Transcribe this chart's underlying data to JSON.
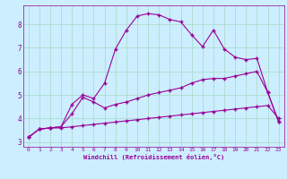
{
  "title": "",
  "xlabel": "Windchill (Refroidissement éolien,°C)",
  "bg_color": "#cceeff",
  "grid_color": "#aaddcc",
  "line_color": "#990099",
  "xlim": [
    -0.5,
    23.5
  ],
  "ylim": [
    2.8,
    8.8
  ],
  "yticks": [
    3,
    4,
    5,
    6,
    7,
    8
  ],
  "xticks": [
    0,
    1,
    2,
    3,
    4,
    5,
    6,
    7,
    8,
    9,
    10,
    11,
    12,
    13,
    14,
    15,
    16,
    17,
    18,
    19,
    20,
    21,
    22,
    23
  ],
  "series1_x": [
    0,
    1,
    2,
    3,
    4,
    5,
    6,
    7,
    8,
    9,
    10,
    11,
    12,
    13,
    14,
    15,
    16,
    17,
    18,
    19,
    20,
    21,
    22,
    23
  ],
  "series1_y": [
    3.2,
    3.55,
    3.6,
    3.6,
    3.65,
    3.7,
    3.75,
    3.8,
    3.85,
    3.9,
    3.95,
    4.0,
    4.05,
    4.1,
    4.15,
    4.2,
    4.25,
    4.3,
    4.35,
    4.4,
    4.45,
    4.5,
    4.55,
    4.0
  ],
  "series2_x": [
    0,
    1,
    2,
    3,
    4,
    5,
    6,
    7,
    8,
    9,
    10,
    11,
    12,
    13,
    14,
    15,
    16,
    17,
    18,
    19,
    20,
    21,
    22,
    23
  ],
  "series2_y": [
    3.2,
    3.55,
    3.6,
    3.65,
    4.2,
    4.9,
    4.7,
    4.45,
    4.6,
    4.7,
    4.85,
    5.0,
    5.1,
    5.2,
    5.3,
    5.5,
    5.65,
    5.7,
    5.7,
    5.8,
    5.9,
    6.0,
    5.1,
    3.85
  ],
  "series3_x": [
    0,
    1,
    2,
    3,
    4,
    5,
    6,
    7,
    8,
    9,
    10,
    11,
    12,
    13,
    14,
    15,
    16,
    17,
    18,
    19,
    20,
    21,
    22,
    23
  ],
  "series3_y": [
    3.2,
    3.55,
    3.6,
    3.65,
    4.6,
    5.0,
    4.85,
    5.5,
    6.95,
    7.75,
    8.35,
    8.45,
    8.4,
    8.2,
    8.1,
    7.55,
    7.05,
    7.75,
    6.95,
    6.6,
    6.5,
    6.55,
    5.1,
    3.85
  ],
  "marker": "+",
  "markersize": 3,
  "linewidth": 0.8
}
